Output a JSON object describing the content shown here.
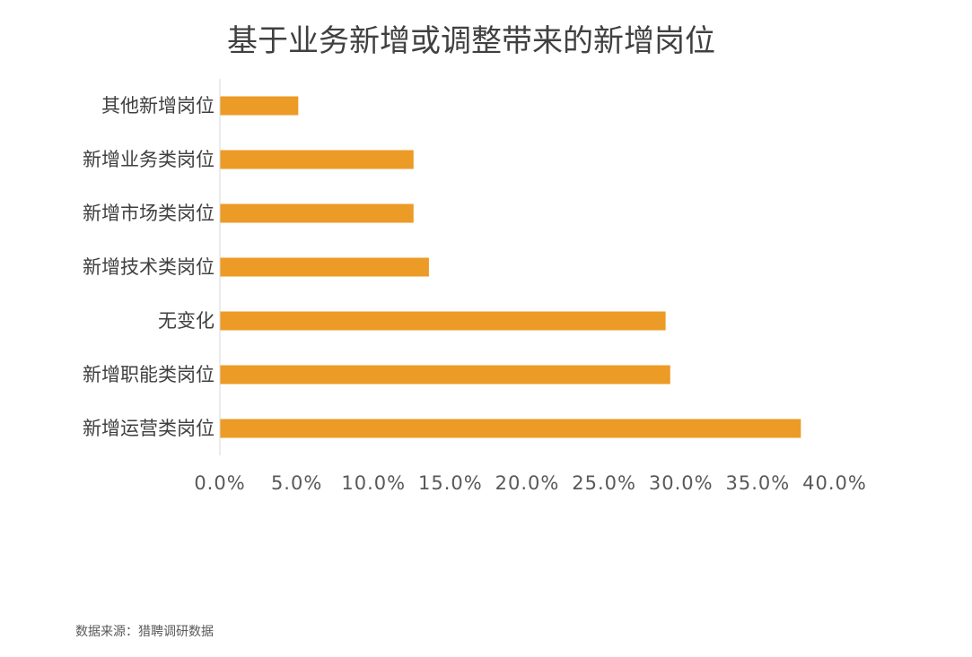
{
  "chart_data": {
    "type": "bar",
    "orientation": "horizontal",
    "title": "基于业务新增或调整带来的新增岗位",
    "categories": [
      "其他新增岗位",
      "新增业务类岗位",
      "新增市场类岗位",
      "新增技术类岗位",
      "无变化",
      "新增职能类岗位",
      "新增运营类岗位"
    ],
    "values": [
      5.1,
      12.6,
      12.6,
      13.6,
      29.0,
      29.3,
      37.8
    ],
    "value_unit": "%",
    "xlim": [
      0,
      40
    ],
    "x_ticks": [
      "0.0%",
      "5.0%",
      "10.0%",
      "15.0%",
      "20.0%",
      "25.0%",
      "30.0%",
      "35.0%",
      "40.0%"
    ],
    "bar_color": "#EC9B26",
    "grid": false,
    "legend": "none"
  },
  "source_note": "数据来源：猎聘调研数据"
}
